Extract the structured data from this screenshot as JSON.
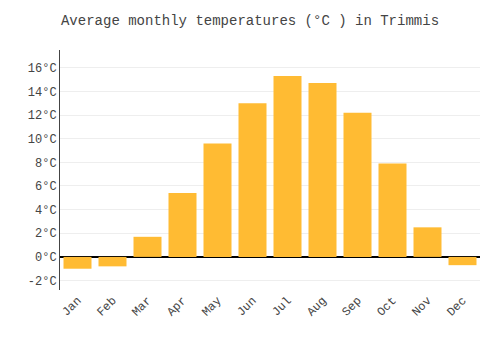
{
  "chart_data": {
    "type": "bar",
    "title": "Average monthly temperatures (°C ) in Trimmis",
    "categories": [
      "Jan",
      "Feb",
      "Mar",
      "Apr",
      "May",
      "Jun",
      "Jul",
      "Aug",
      "Sep",
      "Oct",
      "Nov",
      "Dec"
    ],
    "values": [
      -1.0,
      -0.8,
      1.7,
      5.4,
      9.6,
      13.0,
      15.3,
      14.7,
      12.2,
      7.9,
      2.5,
      -0.7
    ],
    "color": "#FFBB33",
    "ylim": [
      -2.8,
      17.5
    ],
    "yticks": [
      {
        "value": -2,
        "label": "-2°C"
      },
      {
        "value": 0,
        "label": "0°C"
      },
      {
        "value": 2,
        "label": "2°C"
      },
      {
        "value": 4,
        "label": "4°C"
      },
      {
        "value": 6,
        "label": "6°C"
      },
      {
        "value": 8,
        "label": "8°C"
      },
      {
        "value": 10,
        "label": "10°C"
      },
      {
        "value": 12,
        "label": "12°C"
      },
      {
        "value": 14,
        "label": "14°C"
      },
      {
        "value": 16,
        "label": "16°C"
      }
    ],
    "grid": true
  }
}
